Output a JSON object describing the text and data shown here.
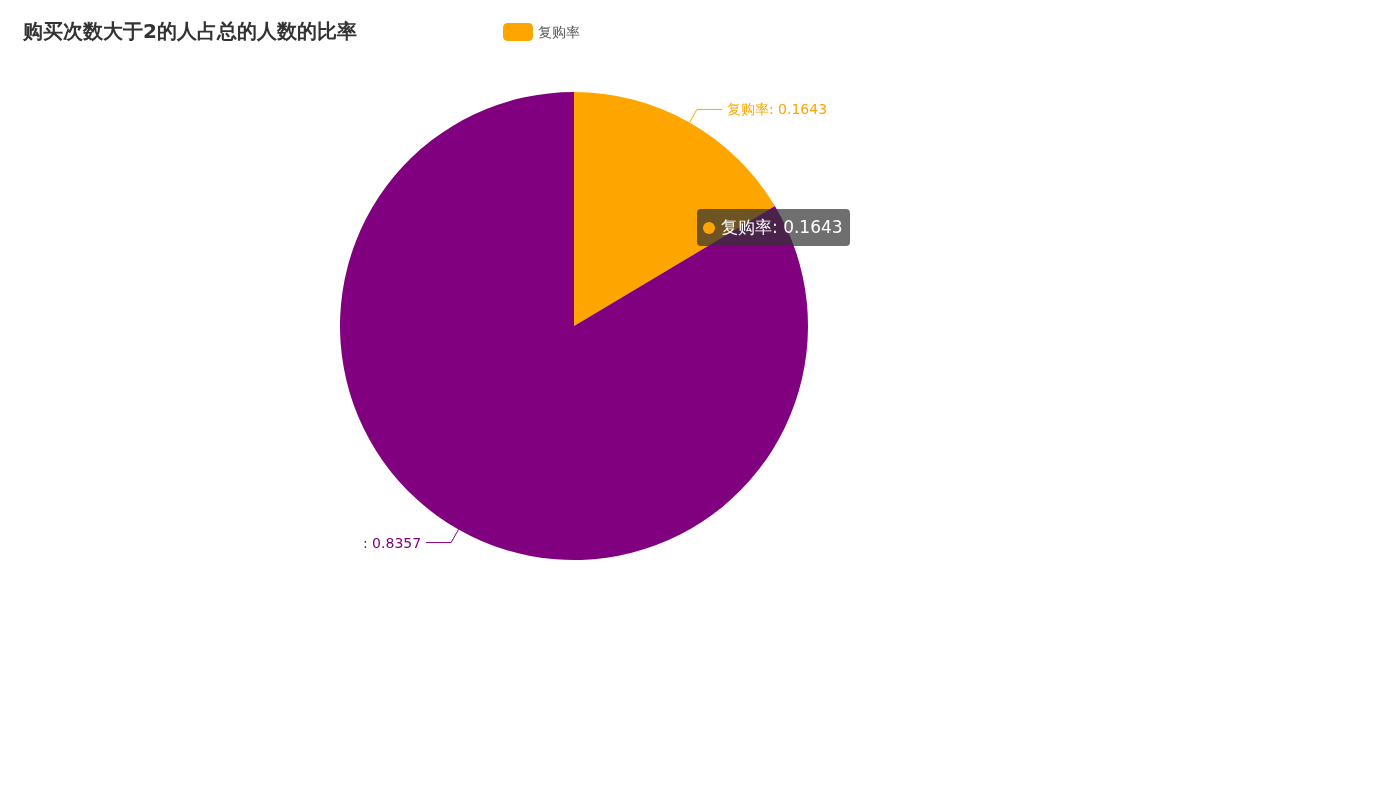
{
  "chart_data": {
    "type": "pie",
    "title": "购买次数大于2的人占总的人数的比率",
    "categories": [
      "复购率",
      null
    ],
    "values": [
      0.1643,
      0.8357
    ],
    "colors": [
      "#ffa500",
      "#800080"
    ],
    "legend": "top",
    "value_labels": [
      "复购率: 0.1643",
      ": 0.8357"
    ],
    "annotations": [
      "复购率: 0.1643"
    ]
  }
}
